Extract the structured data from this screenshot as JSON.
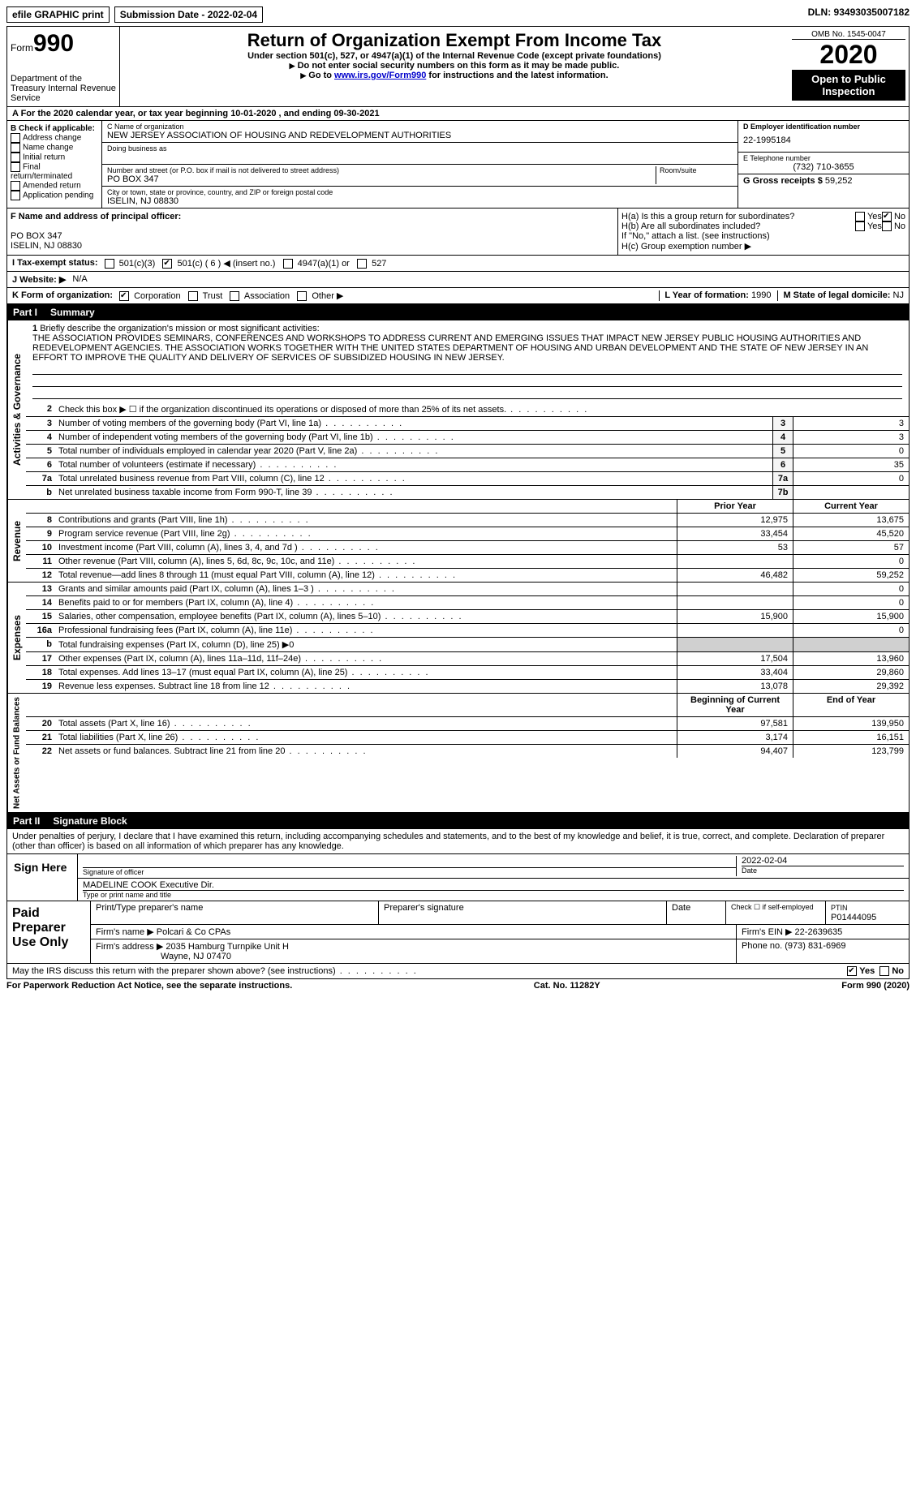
{
  "top": {
    "efile": "efile GRAPHIC print",
    "submission": "Submission Date - 2022-02-04",
    "dln": "DLN: 93493035007182"
  },
  "header": {
    "form": "Form",
    "formNum": "990",
    "dept": "Department of the Treasury\nInternal Revenue Service",
    "title": "Return of Organization Exempt From Income Tax",
    "subtitle": "Under section 501(c), 527, or 4947(a)(1) of the Internal Revenue Code (except private foundations)",
    "note1": "Do not enter social security numbers on this form as it may be made public.",
    "note2_pre": "Go to ",
    "note2_link": "www.irs.gov/Form990",
    "note2_post": " for instructions and the latest information.",
    "omb": "OMB No. 1545-0047",
    "year": "2020",
    "public": "Open to Public Inspection"
  },
  "rowA": "A  For the 2020 calendar year, or tax year beginning 10-01-2020   , and ending 09-30-2021",
  "B": {
    "label": "B Check if applicable:",
    "items": [
      "Address change",
      "Name change",
      "Initial return",
      "Final return/terminated",
      "Amended return",
      "Application pending"
    ]
  },
  "C": {
    "nameLabel": "C Name of organization",
    "name": "NEW JERSEY ASSOCIATION OF HOUSING AND REDEVELOPMENT AUTHORITIES",
    "dba": "Doing business as",
    "streetLabel": "Number and street (or P.O. box if mail is not delivered to street address)",
    "street": "PO BOX 347",
    "room": "Room/suite",
    "cityLabel": "City or town, state or province, country, and ZIP or foreign postal code",
    "city": "ISELIN, NJ  08830"
  },
  "D": {
    "label": "D Employer identification number",
    "val": "22-1995184"
  },
  "E": {
    "label": "E Telephone number",
    "val": "(732) 710-3655"
  },
  "G": {
    "label": "G Gross receipts $",
    "val": "59,252"
  },
  "F": {
    "label": "F  Name and address of principal officer:",
    "addr1": "PO BOX 347",
    "addr2": "ISELIN, NJ  08830"
  },
  "H": {
    "a": "H(a)  Is this a group return for subordinates?",
    "b": "H(b)  Are all subordinates included?",
    "bnote": "If \"No,\" attach a list. (see instructions)",
    "c": "H(c)  Group exemption number ▶",
    "yes": "Yes",
    "no": "No"
  },
  "I": {
    "label": "I   Tax-exempt status:",
    "opts": [
      "501(c)(3)",
      "501(c) ( 6 ) ◀ (insert no.)",
      "4947(a)(1) or",
      "527"
    ]
  },
  "J": {
    "label": "J  Website: ▶",
    "val": "N/A"
  },
  "K": {
    "label": "K Form of organization:",
    "opts": [
      "Corporation",
      "Trust",
      "Association",
      "Other ▶"
    ]
  },
  "L": {
    "label": "L Year of formation:",
    "val": "1990"
  },
  "M": {
    "label": "M State of legal domicile:",
    "val": "NJ"
  },
  "part1": {
    "num": "Part I",
    "title": "Summary"
  },
  "mission": {
    "num": "1",
    "label": "Briefly describe the organization's mission or most significant activities:",
    "text": "THE ASSOCIATION PROVIDES SEMINARS, CONFERENCES AND WORKSHOPS TO ADDRESS CURRENT AND EMERGING ISSUES THAT IMPACT NEW JERSEY PUBLIC HOUSING AUTHORITIES AND REDEVELOPMENT AGENCIES. THE ASSOCIATION WORKS TOGETHER WITH THE UNITED STATES DEPARTMENT OF HOUSING AND URBAN DEVELOPMENT AND THE STATE OF NEW JERSEY IN AN EFFORT TO IMPROVE THE QUALITY AND DELIVERY OF SERVICES OF SUBSIDIZED HOUSING IN NEW JERSEY."
  },
  "lines_gov": [
    {
      "n": "2",
      "t": "Check this box ▶ ☐  if the organization discontinued its operations or disposed of more than 25% of its net assets.",
      "box": "",
      "v": ""
    },
    {
      "n": "3",
      "t": "Number of voting members of the governing body (Part VI, line 1a)",
      "box": "3",
      "v": "3"
    },
    {
      "n": "4",
      "t": "Number of independent voting members of the governing body (Part VI, line 1b)",
      "box": "4",
      "v": "3"
    },
    {
      "n": "5",
      "t": "Total number of individuals employed in calendar year 2020 (Part V, line 2a)",
      "box": "5",
      "v": "0"
    },
    {
      "n": "6",
      "t": "Total number of volunteers (estimate if necessary)",
      "box": "6",
      "v": "35"
    },
    {
      "n": "7a",
      "t": "Total unrelated business revenue from Part VIII, column (C), line 12",
      "box": "7a",
      "v": "0"
    },
    {
      "n": "b",
      "t": "Net unrelated business taxable income from Form 990-T, line 39",
      "box": "7b",
      "v": ""
    }
  ],
  "vlabels": {
    "gov": "Activities & Governance",
    "rev": "Revenue",
    "exp": "Expenses",
    "net": "Net Assets or Fund Balances"
  },
  "col_hdr": {
    "prior": "Prior Year",
    "current": "Current Year",
    "begin": "Beginning of Current Year",
    "end": "End of Year"
  },
  "lines_rev": [
    {
      "n": "8",
      "t": "Contributions and grants (Part VIII, line 1h)",
      "p": "12,975",
      "c": "13,675"
    },
    {
      "n": "9",
      "t": "Program service revenue (Part VIII, line 2g)",
      "p": "33,454",
      "c": "45,520"
    },
    {
      "n": "10",
      "t": "Investment income (Part VIII, column (A), lines 3, 4, and 7d )",
      "p": "53",
      "c": "57"
    },
    {
      "n": "11",
      "t": "Other revenue (Part VIII, column (A), lines 5, 6d, 8c, 9c, 10c, and 11e)",
      "p": "",
      "c": "0"
    },
    {
      "n": "12",
      "t": "Total revenue—add lines 8 through 11 (must equal Part VIII, column (A), line 12)",
      "p": "46,482",
      "c": "59,252"
    }
  ],
  "lines_exp": [
    {
      "n": "13",
      "t": "Grants and similar amounts paid (Part IX, column (A), lines 1–3 )",
      "p": "",
      "c": "0"
    },
    {
      "n": "14",
      "t": "Benefits paid to or for members (Part IX, column (A), line 4)",
      "p": "",
      "c": "0"
    },
    {
      "n": "15",
      "t": "Salaries, other compensation, employee benefits (Part IX, column (A), lines 5–10)",
      "p": "15,900",
      "c": "15,900"
    },
    {
      "n": "16a",
      "t": "Professional fundraising fees (Part IX, column (A), line 11e)",
      "p": "",
      "c": "0"
    },
    {
      "n": "b",
      "t": "Total fundraising expenses (Part IX, column (D), line 25) ▶0",
      "p": "grey",
      "c": "grey"
    },
    {
      "n": "17",
      "t": "Other expenses (Part IX, column (A), lines 11a–11d, 11f–24e)",
      "p": "17,504",
      "c": "13,960"
    },
    {
      "n": "18",
      "t": "Total expenses. Add lines 13–17 (must equal Part IX, column (A), line 25)",
      "p": "33,404",
      "c": "29,860"
    },
    {
      "n": "19",
      "t": "Revenue less expenses. Subtract line 18 from line 12",
      "p": "13,078",
      "c": "29,392"
    }
  ],
  "lines_net": [
    {
      "n": "20",
      "t": "Total assets (Part X, line 16)",
      "p": "97,581",
      "c": "139,950"
    },
    {
      "n": "21",
      "t": "Total liabilities (Part X, line 26)",
      "p": "3,174",
      "c": "16,151"
    },
    {
      "n": "22",
      "t": "Net assets or fund balances. Subtract line 21 from line 20",
      "p": "94,407",
      "c": "123,799"
    }
  ],
  "part2": {
    "num": "Part II",
    "title": "Signature Block"
  },
  "penalties": "Under penalties of perjury, I declare that I have examined this return, including accompanying schedules and statements, and to the best of my knowledge and belief, it is true, correct, and complete. Declaration of preparer (other than officer) is based on all information of which preparer has any knowledge.",
  "sign": {
    "here": "Sign Here",
    "sigLabel": "Signature of officer",
    "dateLabel": "Date",
    "date": "2022-02-04",
    "name": "MADELINE COOK Executive Dir.",
    "nameLabel": "Type or print name and title"
  },
  "paid": {
    "label": "Paid Preparer Use Only",
    "h1": "Print/Type preparer's name",
    "h2": "Preparer's signature",
    "h3": "Date",
    "h4": "Check ☐ if self-employed",
    "h5": "PTIN",
    "ptin": "P01444095",
    "firmName": "Firm's name    ▶ Polcari & Co CPAs",
    "firmEin": "Firm's EIN ▶ 22-2639635",
    "firmAddr": "Firm's address ▶ 2035 Hamburg Turnpike Unit H",
    "firmCity": "Wayne, NJ  07470",
    "phone": "Phone no. (973) 831-6969"
  },
  "discuss": "May the IRS discuss this return with the preparer shown above? (see instructions)",
  "footer": {
    "left": "For Paperwork Reduction Act Notice, see the separate instructions.",
    "mid": "Cat. No. 11282Y",
    "right": "Form 990 (2020)"
  }
}
